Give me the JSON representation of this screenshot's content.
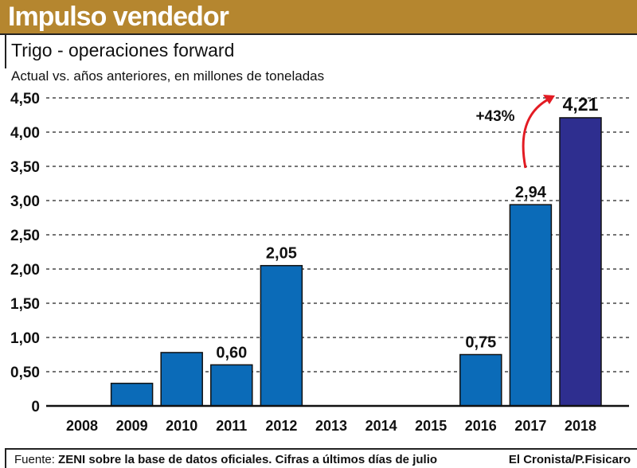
{
  "header": {
    "title": "Impulso vendedor"
  },
  "subtitle": "Trigo - operaciones forward",
  "description": "Actual vs. años anteriores, en millones de toneladas",
  "footer": {
    "source_label": "Fuente:",
    "source_text": "ZENI sobre la base de datos oficiales. Cifras a últimos días de julio",
    "credit": "El Cronista/P.Fisicaro"
  },
  "colors": {
    "bar": "#0b6bb8",
    "highlight": "#2e2e8f",
    "arrow": "#e31b23",
    "header": "#b5862f"
  },
  "chart_data": {
    "type": "bar",
    "title": "Trigo - operaciones forward",
    "ylabel": "millones de toneladas",
    "categories": [
      "2008",
      "2009",
      "2010",
      "2011",
      "2012",
      "2013",
      "2014",
      "2015",
      "2016",
      "2017",
      "2018"
    ],
    "values": [
      0,
      0.33,
      0.78,
      0.6,
      2.05,
      0,
      0,
      0,
      0.75,
      2.94,
      4.21
    ],
    "data_labels": {
      "2011": "0,60",
      "2012": "2,05",
      "2016": "0,75",
      "2017": "2,94",
      "2018": "4,21"
    },
    "yticks": [
      "0",
      "0,50",
      "1,00",
      "1,50",
      "2,00",
      "2,50",
      "3,00",
      "3,50",
      "4,00",
      "4,50"
    ],
    "ylim": [
      0,
      4.5
    ],
    "grid": true,
    "annotation": "+43%"
  }
}
